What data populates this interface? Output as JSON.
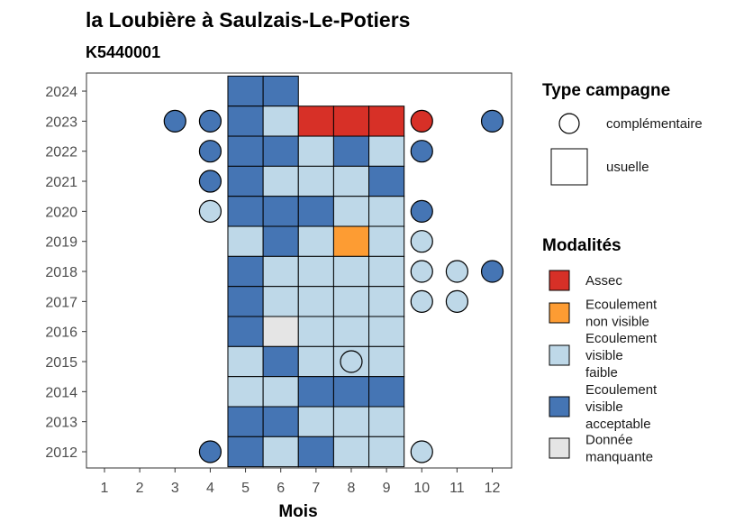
{
  "chart_data": {
    "type": "heatmap",
    "title": "la Loubière à Saulzais-Le-Potiers",
    "subtitle": "K5440001",
    "xlabel": "Mois",
    "ylabel": "",
    "x_ticks": [
      "1",
      "2",
      "3",
      "4",
      "5",
      "6",
      "7",
      "8",
      "9",
      "10",
      "11",
      "12"
    ],
    "y_ticks": [
      "2012",
      "2013",
      "2014",
      "2015",
      "2016",
      "2017",
      "2018",
      "2019",
      "2020",
      "2021",
      "2022",
      "2023",
      "2024"
    ],
    "xlim": [
      0.5,
      12.5
    ],
    "ylim": [
      2011.5,
      2024.5
    ],
    "grid": false,
    "legend_position": "right",
    "colors": {
      "Assec": "#d73027",
      "Ecoulement non visible": "#fd9c33",
      "Ecoulement visible faible": "#bed8e8",
      "Ecoulement visible acceptable": "#4575b4",
      "Donnée manquante": "#e5e5e5"
    },
    "legend_type": {
      "title": "Type campagne",
      "items": [
        {
          "label": "complémentaire",
          "shape": "circle"
        },
        {
          "label": "usuelle",
          "shape": "square"
        }
      ]
    },
    "legend_modalites": {
      "title": "Modalités",
      "items": [
        {
          "key": "Assec",
          "lines": [
            "Assec"
          ]
        },
        {
          "key": "Ecoulement non visible",
          "lines": [
            "Ecoulement",
            "non visible"
          ]
        },
        {
          "key": "Ecoulement visible faible",
          "lines": [
            "Ecoulement",
            "visible",
            "faible"
          ]
        },
        {
          "key": "Ecoulement visible acceptable",
          "lines": [
            "Ecoulement",
            "visible",
            "acceptable"
          ]
        },
        {
          "key": "Donnée manquante",
          "lines": [
            "Donnée",
            "manquante"
          ]
        }
      ]
    },
    "usuelle": [
      {
        "year": 2024,
        "month": 5,
        "modalite": "Ecoulement visible acceptable"
      },
      {
        "year": 2024,
        "month": 6,
        "modalite": "Ecoulement visible acceptable"
      },
      {
        "year": 2023,
        "month": 5,
        "modalite": "Ecoulement visible acceptable"
      },
      {
        "year": 2023,
        "month": 6,
        "modalite": "Ecoulement visible faible"
      },
      {
        "year": 2023,
        "month": 7,
        "modalite": "Assec"
      },
      {
        "year": 2023,
        "month": 8,
        "modalite": "Assec"
      },
      {
        "year": 2023,
        "month": 9,
        "modalite": "Assec"
      },
      {
        "year": 2022,
        "month": 5,
        "modalite": "Ecoulement visible acceptable"
      },
      {
        "year": 2022,
        "month": 6,
        "modalite": "Ecoulement visible acceptable"
      },
      {
        "year": 2022,
        "month": 7,
        "modalite": "Ecoulement visible faible"
      },
      {
        "year": 2022,
        "month": 8,
        "modalite": "Ecoulement visible acceptable"
      },
      {
        "year": 2022,
        "month": 9,
        "modalite": "Ecoulement visible faible"
      },
      {
        "year": 2021,
        "month": 5,
        "modalite": "Ecoulement visible acceptable"
      },
      {
        "year": 2021,
        "month": 6,
        "modalite": "Ecoulement visible faible"
      },
      {
        "year": 2021,
        "month": 7,
        "modalite": "Ecoulement visible faible"
      },
      {
        "year": 2021,
        "month": 8,
        "modalite": "Ecoulement visible faible"
      },
      {
        "year": 2021,
        "month": 9,
        "modalite": "Ecoulement visible acceptable"
      },
      {
        "year": 2020,
        "month": 5,
        "modalite": "Ecoulement visible acceptable"
      },
      {
        "year": 2020,
        "month": 6,
        "modalite": "Ecoulement visible acceptable"
      },
      {
        "year": 2020,
        "month": 7,
        "modalite": "Ecoulement visible acceptable"
      },
      {
        "year": 2020,
        "month": 8,
        "modalite": "Ecoulement visible faible"
      },
      {
        "year": 2020,
        "month": 9,
        "modalite": "Ecoulement visible faible"
      },
      {
        "year": 2019,
        "month": 5,
        "modalite": "Ecoulement visible faible"
      },
      {
        "year": 2019,
        "month": 6,
        "modalite": "Ecoulement visible acceptable"
      },
      {
        "year": 2019,
        "month": 7,
        "modalite": "Ecoulement visible faible"
      },
      {
        "year": 2019,
        "month": 8,
        "modalite": "Ecoulement non visible"
      },
      {
        "year": 2019,
        "month": 9,
        "modalite": "Ecoulement visible faible"
      },
      {
        "year": 2018,
        "month": 5,
        "modalite": "Ecoulement visible acceptable"
      },
      {
        "year": 2018,
        "month": 6,
        "modalite": "Ecoulement visible faible"
      },
      {
        "year": 2018,
        "month": 7,
        "modalite": "Ecoulement visible faible"
      },
      {
        "year": 2018,
        "month": 8,
        "modalite": "Ecoulement visible faible"
      },
      {
        "year": 2018,
        "month": 9,
        "modalite": "Ecoulement visible faible"
      },
      {
        "year": 2017,
        "month": 5,
        "modalite": "Ecoulement visible acceptable"
      },
      {
        "year": 2017,
        "month": 6,
        "modalite": "Ecoulement visible faible"
      },
      {
        "year": 2017,
        "month": 7,
        "modalite": "Ecoulement visible faible"
      },
      {
        "year": 2017,
        "month": 8,
        "modalite": "Ecoulement visible faible"
      },
      {
        "year": 2017,
        "month": 9,
        "modalite": "Ecoulement visible faible"
      },
      {
        "year": 2016,
        "month": 5,
        "modalite": "Ecoulement visible acceptable"
      },
      {
        "year": 2016,
        "month": 6,
        "modalite": "Donnée manquante"
      },
      {
        "year": 2016,
        "month": 7,
        "modalite": "Ecoulement visible faible"
      },
      {
        "year": 2016,
        "month": 8,
        "modalite": "Ecoulement visible faible"
      },
      {
        "year": 2016,
        "month": 9,
        "modalite": "Ecoulement visible faible"
      },
      {
        "year": 2015,
        "month": 5,
        "modalite": "Ecoulement visible faible"
      },
      {
        "year": 2015,
        "month": 6,
        "modalite": "Ecoulement visible acceptable"
      },
      {
        "year": 2015,
        "month": 7,
        "modalite": "Ecoulement visible faible"
      },
      {
        "year": 2015,
        "month": 8,
        "modalite": "Ecoulement visible faible"
      },
      {
        "year": 2015,
        "month": 9,
        "modalite": "Ecoulement visible faible"
      },
      {
        "year": 2014,
        "month": 5,
        "modalite": "Ecoulement visible faible"
      },
      {
        "year": 2014,
        "month": 6,
        "modalite": "Ecoulement visible faible"
      },
      {
        "year": 2014,
        "month": 7,
        "modalite": "Ecoulement visible acceptable"
      },
      {
        "year": 2014,
        "month": 8,
        "modalite": "Ecoulement visible acceptable"
      },
      {
        "year": 2014,
        "month": 9,
        "modalite": "Ecoulement visible acceptable"
      },
      {
        "year": 2013,
        "month": 5,
        "modalite": "Ecoulement visible acceptable"
      },
      {
        "year": 2013,
        "month": 6,
        "modalite": "Ecoulement visible acceptable"
      },
      {
        "year": 2013,
        "month": 7,
        "modalite": "Ecoulement visible faible"
      },
      {
        "year": 2013,
        "month": 8,
        "modalite": "Ecoulement visible faible"
      },
      {
        "year": 2013,
        "month": 9,
        "modalite": "Ecoulement visible faible"
      },
      {
        "year": 2012,
        "month": 5,
        "modalite": "Ecoulement visible acceptable"
      },
      {
        "year": 2012,
        "month": 6,
        "modalite": "Ecoulement visible faible"
      },
      {
        "year": 2012,
        "month": 7,
        "modalite": "Ecoulement visible acceptable"
      },
      {
        "year": 2012,
        "month": 8,
        "modalite": "Ecoulement visible faible"
      },
      {
        "year": 2012,
        "month": 9,
        "modalite": "Ecoulement visible faible"
      }
    ],
    "complementaire": [
      {
        "year": 2023,
        "month": 3,
        "modalite": "Ecoulement visible acceptable"
      },
      {
        "year": 2023,
        "month": 4,
        "modalite": "Ecoulement visible acceptable"
      },
      {
        "year": 2023,
        "month": 10,
        "modalite": "Assec"
      },
      {
        "year": 2023,
        "month": 12,
        "modalite": "Ecoulement visible acceptable"
      },
      {
        "year": 2022,
        "month": 4,
        "modalite": "Ecoulement visible acceptable"
      },
      {
        "year": 2022,
        "month": 10,
        "modalite": "Ecoulement visible acceptable"
      },
      {
        "year": 2021,
        "month": 4,
        "modalite": "Ecoulement visible acceptable"
      },
      {
        "year": 2020,
        "month": 4,
        "modalite": "Ecoulement visible faible"
      },
      {
        "year": 2020,
        "month": 10,
        "modalite": "Ecoulement visible acceptable"
      },
      {
        "year": 2019,
        "month": 10,
        "modalite": "Ecoulement visible faible"
      },
      {
        "year": 2018,
        "month": 10,
        "modalite": "Ecoulement visible faible"
      },
      {
        "year": 2018,
        "month": 11,
        "modalite": "Ecoulement visible faible"
      },
      {
        "year": 2018,
        "month": 12,
        "modalite": "Ecoulement visible acceptable"
      },
      {
        "year": 2017,
        "month": 10,
        "modalite": "Ecoulement visible faible"
      },
      {
        "year": 2017,
        "month": 11,
        "modalite": "Ecoulement visible faible"
      },
      {
        "year": 2015,
        "month": 8,
        "modalite": "Ecoulement visible faible"
      },
      {
        "year": 2012,
        "month": 4,
        "modalite": "Ecoulement visible acceptable"
      },
      {
        "year": 2012,
        "month": 10,
        "modalite": "Ecoulement visible faible"
      }
    ]
  }
}
